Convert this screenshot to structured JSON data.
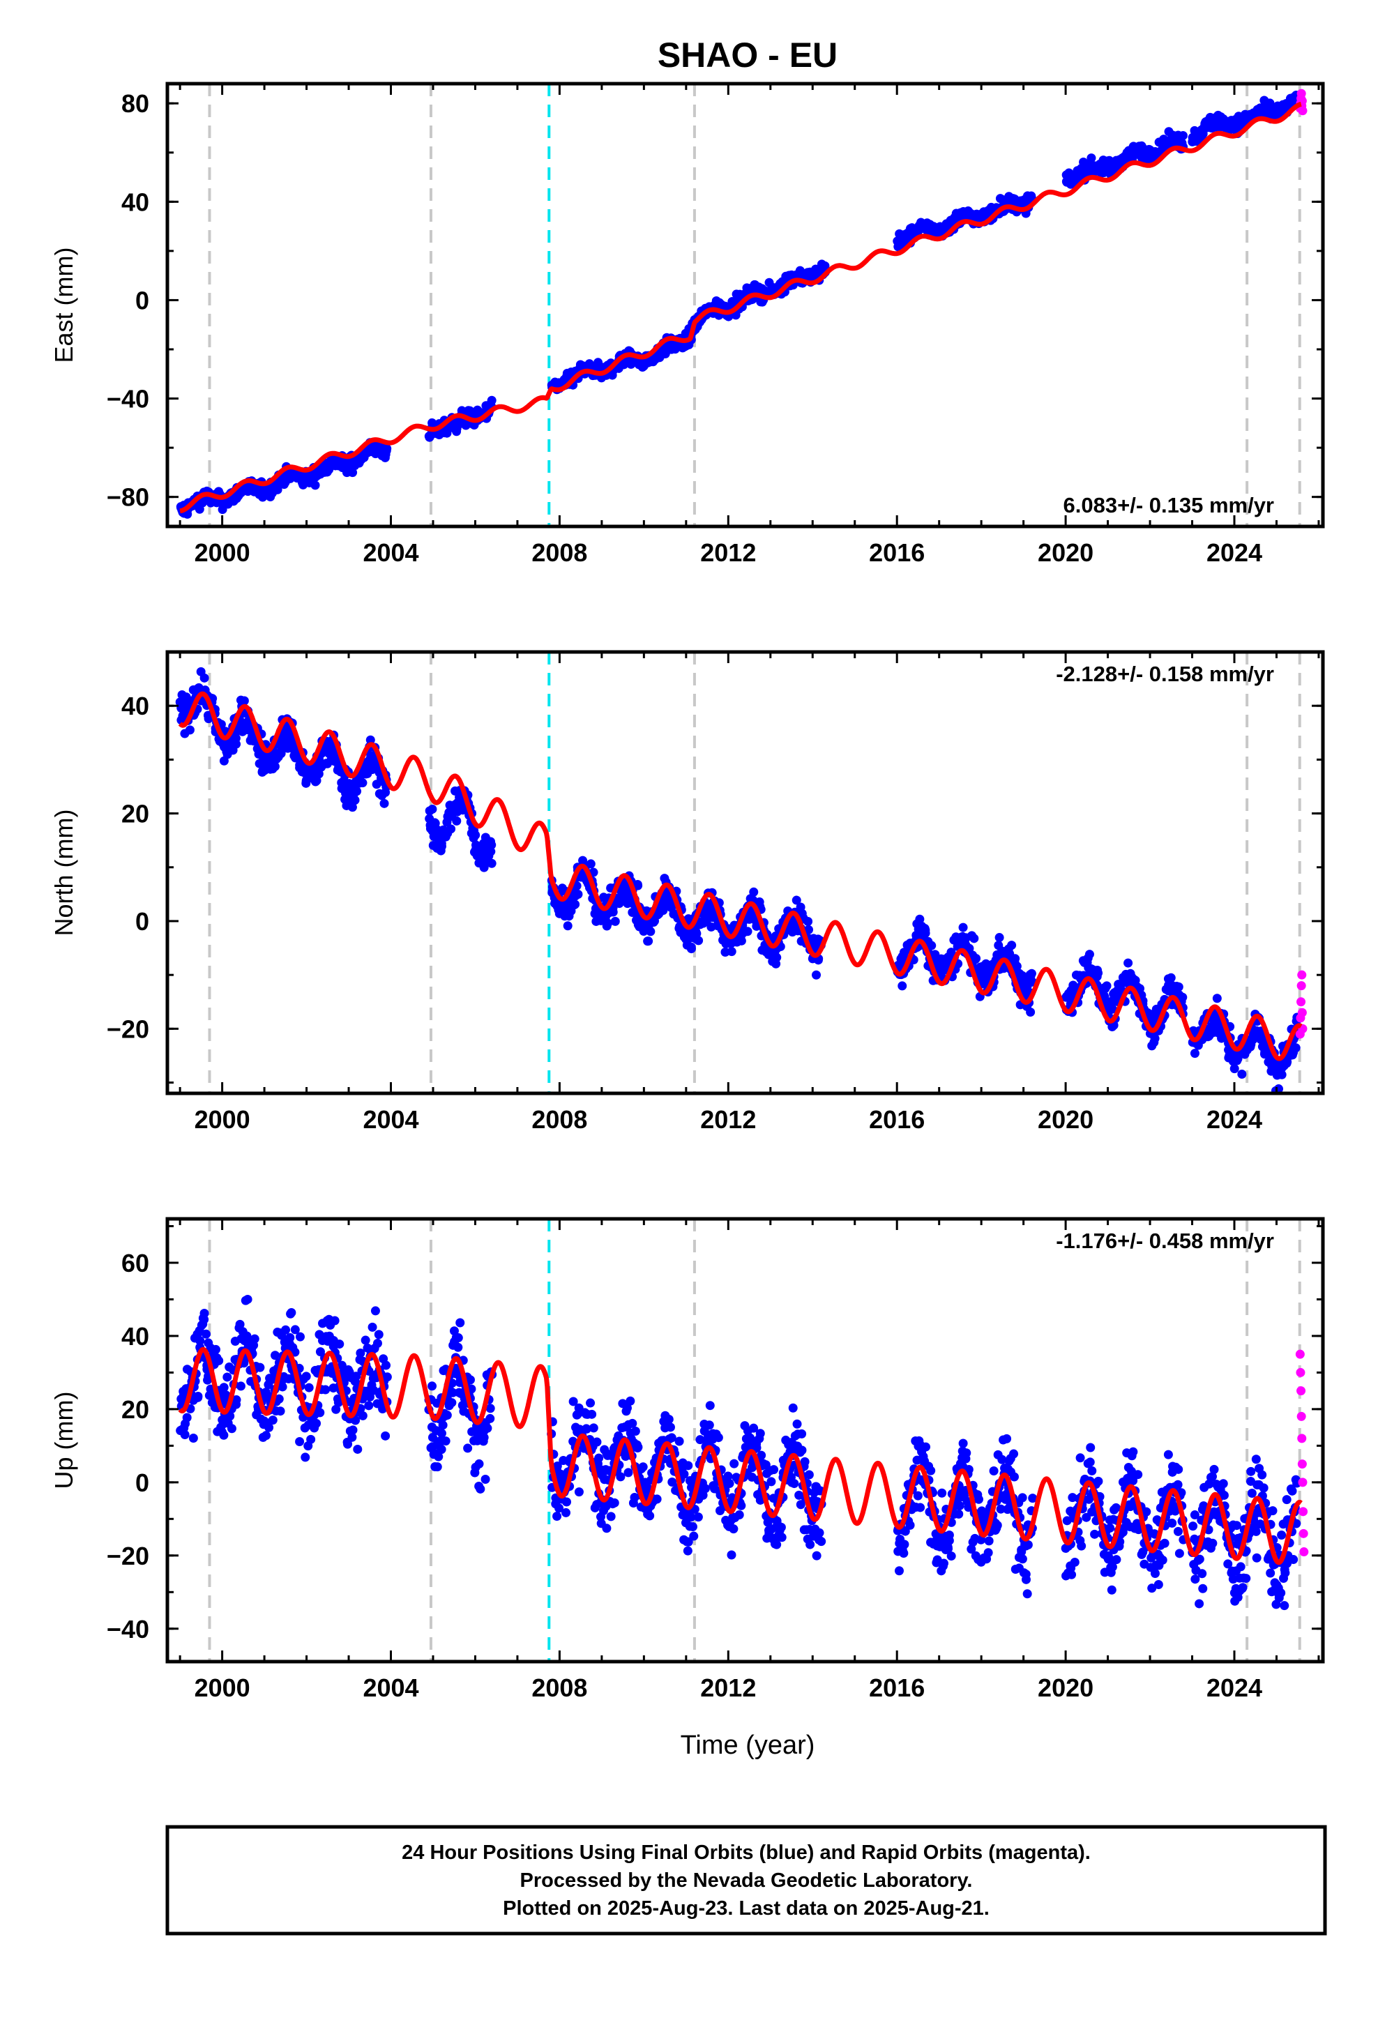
{
  "title": "SHAO - EU",
  "xlabel": "Time (year)",
  "footer": {
    "line1": "24 Hour Positions Using Final Orbits (blue) and Rapid Orbits (magenta).",
    "line2": "Processed by the Nevada Geodetic Laboratory.",
    "line3": "Plotted on 2025-Aug-23. Last data on 2025-Aug-21."
  },
  "colors": {
    "final_orbits": "#0000ff",
    "rapid_orbits": "#ff00ff",
    "model": "#ff0000",
    "equipment_change": "#c8c8c8",
    "earthquake": "#00e5ee"
  },
  "x_ticks": [
    2000,
    2004,
    2008,
    2012,
    2016,
    2020,
    2024
  ],
  "x_tick_labels": [
    "2000",
    "2004",
    "2008",
    "2012",
    "2016",
    "2020",
    "2024"
  ],
  "chart_data": [
    {
      "type": "scatter",
      "panel": "east",
      "ylabel": "East (mm)",
      "xlim": [
        1998.7,
        2026.1
      ],
      "ylim": [
        -92,
        88
      ],
      "yticks": [
        -80,
        -40,
        0,
        40,
        80
      ],
      "ytick_labels": [
        "−80",
        "−40",
        "0",
        "40",
        "80"
      ],
      "rate_label": "6.083+/- 0.135 mm/yr",
      "rate_position": "bottom-right",
      "events": [
        {
          "x": 1999.7,
          "kind": "equipment"
        },
        {
          "x": 2004.95,
          "kind": "equipment"
        },
        {
          "x": 2007.75,
          "kind": "earthquake"
        },
        {
          "x": 2011.2,
          "kind": "equipment"
        },
        {
          "x": 2024.3,
          "kind": "equipment"
        },
        {
          "x": 2025.55,
          "kind": "equipment"
        }
      ],
      "series": [
        {
          "name": "Final Orbits",
          "type": "scatter",
          "color": "#0000ff",
          "segments": [
            {
              "x": [
                1999.0,
                1999.5,
                2000.0,
                2000.5,
                2001.0,
                2001.5,
                2002.0,
                2002.5,
                2003.0,
                2003.5,
                2003.9
              ],
              "y": [
                -84,
                -82,
                -80,
                -78,
                -76,
                -73,
                -71,
                -68,
                -65,
                -62,
                -61
              ]
            },
            {
              "x": [
                2004.9,
                2005.2,
                2005.5,
                2005.8,
                2006.1,
                2006.4
              ],
              "y": [
                -52,
                -51,
                -52,
                -48,
                -46,
                -44
              ]
            },
            {
              "x": [
                2007.8,
                2008.2,
                2008.6,
                2009.0,
                2009.4,
                2009.8,
                2010.2,
                2010.6,
                2011.0,
                2011.2,
                2011.6,
                2012.0,
                2012.4,
                2012.8,
                2013.2,
                2013.6,
                2014.0,
                2014.3
              ],
              "y": [
                -35,
                -32,
                -30,
                -28,
                -26,
                -24,
                -22,
                -20,
                -15,
                -9,
                -5,
                -2,
                0,
                3,
                6,
                8,
                11,
                14
              ]
            },
            {
              "x": [
                2016.0,
                2016.5,
                2017.0,
                2017.5,
                2018.0,
                2018.5,
                2019.0,
                2019.2
              ],
              "y": [
                25,
                27,
                30,
                32,
                35,
                37,
                40,
                42
              ]
            },
            {
              "x": [
                2020.0,
                2020.5,
                2021.0,
                2021.5,
                2022.0,
                2022.5,
                2022.8
              ],
              "y": [
                50,
                52,
                55,
                58,
                61,
                63,
                64
              ]
            },
            {
              "x": [
                2023.0,
                2023.5,
                2024.0,
                2024.5,
                2025.0,
                2025.5
              ],
              "y": [
                68,
                71,
                73,
                74,
                78,
                80
              ]
            }
          ],
          "noise": 2.2
        },
        {
          "name": "Rapid Orbits",
          "type": "scatter",
          "color": "#ff00ff",
          "x": [
            2025.56,
            2025.57,
            2025.58,
            2025.59,
            2025.6,
            2025.61,
            2025.62
          ],
          "y": [
            78,
            80,
            82,
            84,
            79,
            81,
            77
          ]
        },
        {
          "name": "Model",
          "type": "line",
          "color": "#ff0000",
          "x_start": 1999.0,
          "x_end": 2025.6,
          "trend_knots": [
            [
              1999.0,
              -84
            ],
            [
              2004.95,
              -51
            ],
            [
              2007.7,
              -41
            ],
            [
              2007.8,
              -36
            ],
            [
              2011.1,
              -14
            ],
            [
              2011.2,
              -8
            ],
            [
              2025.6,
              78
            ]
          ],
          "annual_amplitude": 1.8
        }
      ]
    },
    {
      "type": "scatter",
      "panel": "north",
      "ylabel": "North (mm)",
      "xlim": [
        1998.7,
        2026.1
      ],
      "ylim": [
        -32,
        50
      ],
      "yticks": [
        -20,
        0,
        20,
        40
      ],
      "ytick_labels": [
        "−20",
        "0",
        "20",
        "40"
      ],
      "rate_label": "-2.128+/- 0.158 mm/yr",
      "rate_position": "top-right",
      "events": [
        {
          "x": 1999.7,
          "kind": "equipment"
        },
        {
          "x": 2004.95,
          "kind": "equipment"
        },
        {
          "x": 2007.75,
          "kind": "earthquake"
        },
        {
          "x": 2011.2,
          "kind": "equipment"
        },
        {
          "x": 2024.3,
          "kind": "equipment"
        },
        {
          "x": 2025.55,
          "kind": "equipment"
        }
      ],
      "series": [
        {
          "name": "Final Orbits",
          "type": "scatter",
          "color": "#0000ff",
          "segments": [
            {
              "x": [
                1999.0,
                1999.5,
                2000.0,
                2000.5,
                2001.0,
                2001.5,
                2002.0,
                2002.5,
                2003.0,
                2003.5,
                2003.9
              ],
              "y": [
                42,
                40,
                36,
                35,
                33,
                32,
                30,
                29,
                27,
                27,
                26
              ]
            },
            {
              "x": [
                2004.9,
                2005.2,
                2005.5,
                2005.8,
                2006.1,
                2006.4
              ],
              "y": [
                20,
                17,
                18,
                22,
                15,
                13
              ]
            },
            {
              "x": [
                2007.8,
                2008.2,
                2008.6,
                2009.0,
                2009.4,
                2009.8,
                2010.2,
                2010.6,
                2011.0,
                2011.4,
                2011.8,
                2012.2,
                2012.6,
                2013.0,
                2013.4,
                2013.8,
                2014.2
              ],
              "y": [
                7,
                5,
                6,
                4,
                4,
                3,
                2,
                2,
                1,
                0,
                0,
                -1,
                -1,
                -2,
                -2,
                -2,
                -3
              ]
            },
            {
              "x": [
                2016.0,
                2016.5,
                2017.0,
                2017.5,
                2018.0,
                2018.5,
                2019.0,
                2019.2
              ],
              "y": [
                -6,
                -6,
                -7,
                -7,
                -8,
                -9,
                -10,
                -11
              ]
            },
            {
              "x": [
                2020.0,
                2020.5,
                2021.0,
                2021.5,
                2022.0,
                2022.5,
                2022.8
              ],
              "y": [
                -12,
                -12,
                -13,
                -14,
                -16,
                -16,
                -17
              ]
            },
            {
              "x": [
                2023.0,
                2023.5,
                2024.0,
                2024.5,
                2025.0,
                2025.5
              ],
              "y": [
                -19,
                -21,
                -22,
                -23,
                -25,
                -22
              ]
            }
          ],
          "noise": 2.4
        },
        {
          "name": "Rapid Orbits",
          "type": "scatter",
          "color": "#ff00ff",
          "x": [
            2025.56,
            2025.57,
            2025.58,
            2025.59,
            2025.6,
            2025.61,
            2025.62
          ],
          "y": [
            -21,
            -18,
            -15,
            -12,
            -10,
            -17,
            -20
          ]
        },
        {
          "name": "Model",
          "type": "line",
          "color": "#ff0000",
          "x_start": 1999.0,
          "x_end": 2025.6,
          "trend_knots": [
            [
              1999.0,
              40
            ],
            [
              2004.95,
              26
            ],
            [
              2007.7,
              14
            ],
            [
              2007.8,
              8
            ],
            [
              2025.6,
              -23
            ]
          ],
          "annual_amplitude": 3.5
        }
      ]
    },
    {
      "type": "scatter",
      "panel": "up",
      "ylabel": "Up (mm)",
      "xlim": [
        1998.7,
        2026.1
      ],
      "ylim": [
        -49,
        72
      ],
      "yticks": [
        -40,
        -20,
        0,
        20,
        40,
        60
      ],
      "ytick_labels": [
        "−40",
        "−20",
        "0",
        "20",
        "40",
        "60"
      ],
      "rate_label": "-1.176+/- 0.458 mm/yr",
      "rate_position": "top-right",
      "events": [
        {
          "x": 1999.7,
          "kind": "equipment"
        },
        {
          "x": 2004.95,
          "kind": "equipment"
        },
        {
          "x": 2007.75,
          "kind": "earthquake"
        },
        {
          "x": 2011.2,
          "kind": "equipment"
        },
        {
          "x": 2024.3,
          "kind": "equipment"
        },
        {
          "x": 2025.55,
          "kind": "equipment"
        }
      ],
      "series": [
        {
          "name": "Final Orbits",
          "type": "scatter",
          "color": "#0000ff",
          "segments": [
            {
              "x": [
                1999.0,
                1999.5,
                2000.0,
                2000.5,
                2001.0,
                2001.5,
                2002.0,
                2002.5,
                2003.0,
                2003.5,
                2003.9
              ],
              "y": [
                24,
                28,
                28,
                30,
                29,
                29,
                28,
                28,
                27,
                27,
                26
              ]
            },
            {
              "x": [
                2004.9,
                2005.2,
                2005.5,
                2005.8,
                2006.1,
                2006.4
              ],
              "y": [
                24,
                23,
                25,
                22,
                21,
                22
              ]
            },
            {
              "x": [
                2007.8,
                2008.2,
                2008.6,
                2009.0,
                2009.4,
                2009.8,
                2010.2,
                2010.6,
                2011.0,
                2011.4,
                2011.8,
                2012.2,
                2012.6,
                2013.0,
                2013.4,
                2013.8,
                2014.2
              ],
              "y": [
                5,
                6,
                6,
                5,
                5,
                4,
                4,
                3,
                3,
                2,
                1,
                1,
                0,
                0,
                -1,
                -1,
                -2
              ]
            },
            {
              "x": [
                2016.0,
                2016.5,
                2017.0,
                2017.5,
                2018.0,
                2018.5,
                2019.0,
                2019.2
              ],
              "y": [
                -5,
                -5,
                -6,
                -6,
                -7,
                -7,
                -8,
                -8
              ]
            },
            {
              "x": [
                2020.0,
                2020.5,
                2021.0,
                2021.5,
                2022.0,
                2022.5,
                2022.8
              ],
              "y": [
                -9,
                -9,
                -10,
                -10,
                -11,
                -11,
                -12
              ]
            },
            {
              "x": [
                2023.0,
                2023.5,
                2024.0,
                2024.5,
                2025.0,
                2025.5
              ],
              "y": [
                -13,
                -13,
                -14,
                -14,
                -15,
                -13
              ]
            }
          ],
          "noise": 8.5
        },
        {
          "name": "Rapid Orbits",
          "type": "scatter",
          "color": "#ff00ff",
          "x": [
            2025.56,
            2025.57,
            2025.58,
            2025.59,
            2025.6,
            2025.61,
            2025.62,
            2025.63,
            2025.64,
            2025.65
          ],
          "y": [
            35,
            30,
            25,
            18,
            12,
            5,
            0,
            -8,
            -14,
            -19
          ]
        },
        {
          "name": "Model",
          "type": "line",
          "color": "#ff0000",
          "x_start": 1999.0,
          "x_end": 2025.6,
          "trend_knots": [
            [
              1999.0,
              28
            ],
            [
              2004.95,
              26
            ],
            [
              2007.7,
              23
            ],
            [
              2007.8,
              5
            ],
            [
              2025.6,
              -14
            ]
          ],
          "annual_amplitude": 8.5
        }
      ]
    }
  ]
}
